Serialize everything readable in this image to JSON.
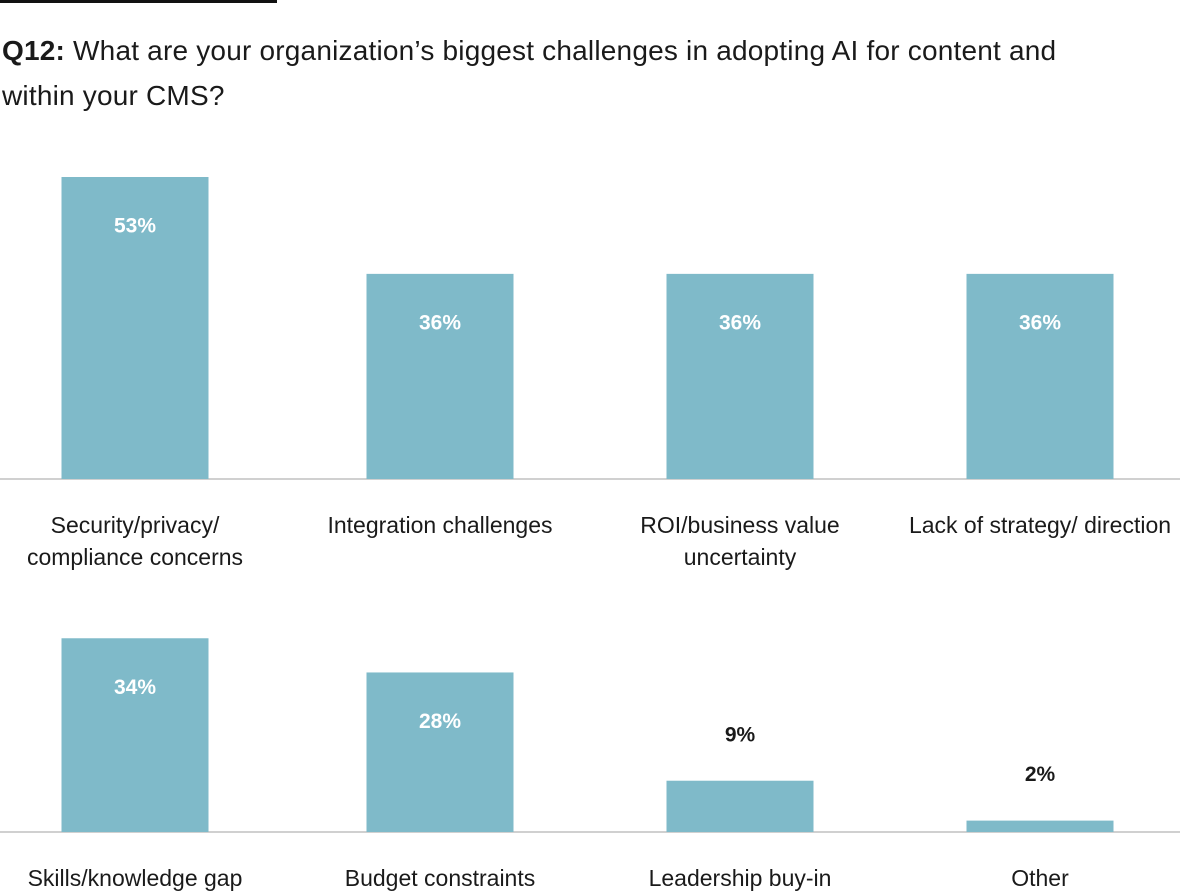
{
  "chart_data": {
    "type": "bar",
    "title_prefix": "Q12:",
    "title": "What are your organization’s biggest challenges in adopting AI for content and within your CMS?",
    "categories": [
      "Security/privacy/ compliance concerns",
      "Integration challenges",
      "ROI/business value uncertainty",
      "Lack of strategy/ direction",
      "Skills/knowledge gap",
      "Budget constraints",
      "Leadership buy-in",
      "Other"
    ],
    "values": [
      53,
      36,
      36,
      36,
      34,
      28,
      9,
      2
    ],
    "value_labels": [
      "53%",
      "36%",
      "36%",
      "36%",
      "34%",
      "28%",
      "9%",
      "2%"
    ],
    "color": "#7fbac9"
  }
}
